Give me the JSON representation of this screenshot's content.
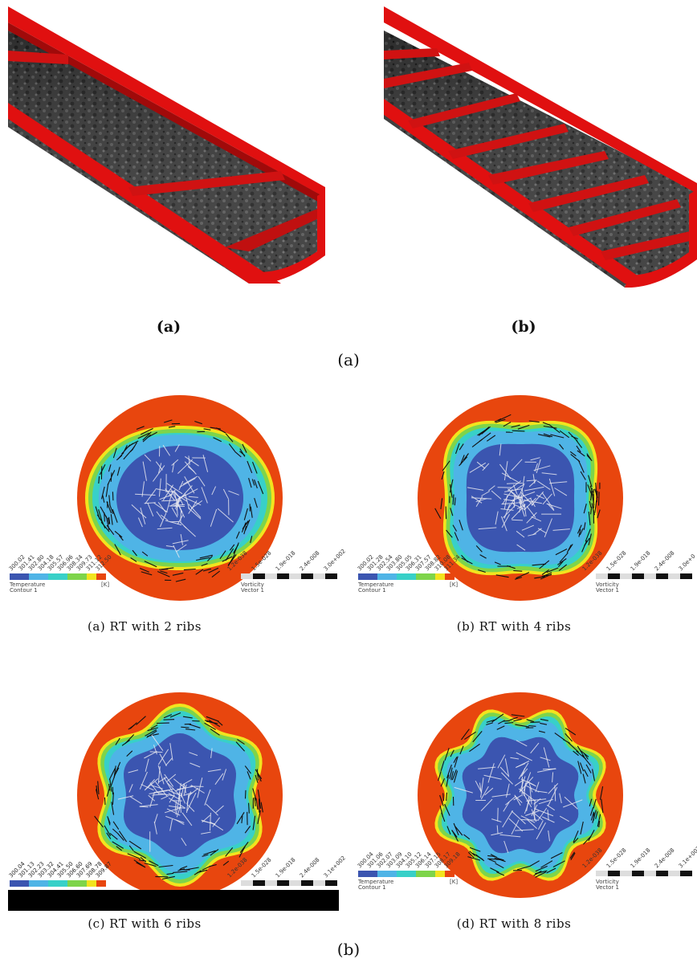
{
  "top_figure": {
    "panels": [
      {
        "label": "(a)",
        "ribs": 2
      },
      {
        "label": "(b)",
        "ribs": 8
      }
    ],
    "caption": "(a)"
  },
  "bottom_figure": {
    "caption": "(b)",
    "panels": [
      {
        "caption": "(a) RT with 2 ribs",
        "ribs": 2,
        "legend_title": "Temperature",
        "legend_subtitle": "Contour 1",
        "legend_unit": "[K]",
        "temp_ticks": [
          "300.02",
          "301.41",
          "302.80",
          "304.18",
          "305.57",
          "306.96",
          "308.34",
          "309.73",
          "311.12",
          "312.50"
        ],
        "vort_ticks": [
          "1.2e-038",
          "1.5e-028",
          "1.9e-018",
          "2.4e-008",
          "3.0e+002"
        ],
        "vort_title": "Vorticity",
        "vort_subtitle": "Vector 1"
      },
      {
        "caption": "(b) RT with 4 ribs",
        "ribs": 4,
        "legend_title": "Temperature",
        "legend_subtitle": "Contour 1",
        "legend_unit": "[K]",
        "temp_ticks": [
          "300.02",
          "301.28",
          "302.54",
          "303.80",
          "305.05",
          "306.31",
          "307.57",
          "308.82",
          "310.08",
          "311.34"
        ],
        "vort_ticks": [
          "1.2e-038",
          "1.5e-028",
          "1.9e-018",
          "2.4e-008",
          "3.0e+0"
        ],
        "vort_title": "Vorticity",
        "vort_subtitle": "Vector 1"
      },
      {
        "caption": "(c) RT with 6 ribs",
        "ribs": 6,
        "legend_title": "",
        "legend_subtitle": "",
        "legend_unit": "",
        "temp_ticks": [
          "300.04",
          "301.13",
          "302.23",
          "303.32",
          "304.41",
          "305.50",
          "306.60",
          "307.69",
          "308.78",
          "309.87"
        ],
        "vort_ticks": [
          "1.2e-038",
          "1.5e-028",
          "1.9e-018",
          "2.4e-008",
          "3.1e+002"
        ],
        "vort_title": "",
        "vort_subtitle": ""
      },
      {
        "caption": "(d) RT with 8 ribs",
        "ribs": 8,
        "legend_title": "Temperature",
        "legend_subtitle": "Contour 1",
        "legend_unit": "[K]",
        "temp_ticks": [
          "300.04",
          "301.06",
          "302.07",
          "303.09",
          "304.10",
          "305.12",
          "306.14",
          "307.15",
          "308.17",
          "309.18"
        ],
        "vort_ticks": [
          "1.2e-038",
          "1.5e-028",
          "1.9e-018",
          "2.4e-008",
          "3.1e+002"
        ],
        "vort_title": "Vorticity",
        "vort_subtitle": "Vector 1"
      }
    ]
  },
  "colors": {
    "tube_red": "#e01010",
    "wall_orange": "#e8460e",
    "core_blue": "#3b55b0",
    "ring_lightblue": "#4fb4e6",
    "cyan": "#38d0c8",
    "green": "#7ed44a",
    "yellow": "#f2e41e"
  }
}
